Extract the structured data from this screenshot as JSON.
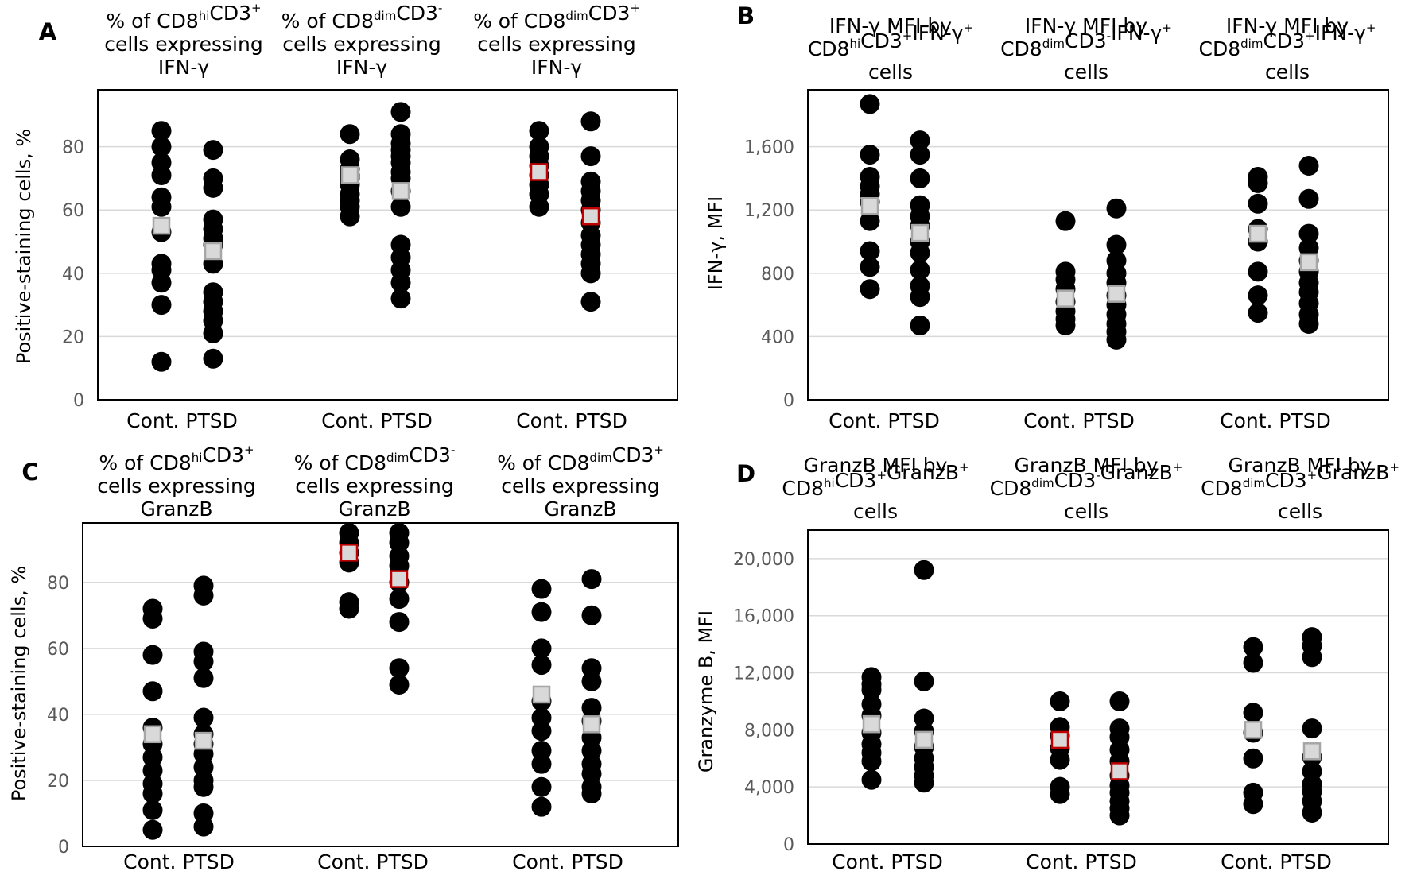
{
  "chart_data": [
    {
      "panel": "A",
      "type": "scatter",
      "ylabel": "Positive-staining cells, %",
      "ylim": [
        0,
        98
      ],
      "yticks": [
        0,
        20,
        40,
        60,
        80
      ],
      "ytick_labels": [
        "0",
        "20",
        "40",
        "60",
        "80"
      ],
      "groups": [
        {
          "title_lines": [
            [
              [
                "% of CD8",
                ""
              ],
              [
                "hi",
                "sup"
              ],
              [
                "CD3",
                ""
              ],
              [
                "+",
                "sup"
              ]
            ],
            [
              [
                "cells expressing",
                ""
              ]
            ],
            [
              [
                "IFN-γ",
                ""
              ]
            ]
          ],
          "pair_label": "Cont. PTSD",
          "cont": [
            85,
            80,
            75,
            71,
            64,
            61,
            53,
            43,
            41,
            37,
            30,
            12
          ],
          "ptsd": [
            79,
            70,
            67,
            57,
            54,
            51,
            49,
            43,
            34,
            31,
            28,
            25,
            21,
            13
          ],
          "cont_mean": 55,
          "ptsd_mean": 47,
          "cont_sig": false,
          "ptsd_sig": false
        },
        {
          "title_lines": [
            [
              [
                "% of CD8",
                ""
              ],
              [
                "dim",
                "sup"
              ],
              [
                "CD3",
                ""
              ],
              [
                "-",
                "sup"
              ]
            ],
            [
              [
                "cells expressing",
                ""
              ]
            ],
            [
              [
                "IFN-γ",
                ""
              ]
            ]
          ],
          "pair_label": "Cont. PTSD",
          "cont": [
            84,
            76,
            73,
            71,
            70,
            68,
            65,
            63,
            61,
            58
          ],
          "ptsd": [
            91,
            84,
            81,
            79,
            77,
            75,
            72,
            70,
            66,
            61,
            49,
            45,
            41,
            37,
            32
          ],
          "cont_mean": 71,
          "ptsd_mean": 66,
          "cont_sig": false,
          "ptsd_sig": false
        },
        {
          "title_lines": [
            [
              [
                "% of CD8",
                ""
              ],
              [
                "dim",
                "sup"
              ],
              [
                "CD3",
                ""
              ],
              [
                "+",
                "sup"
              ]
            ],
            [
              [
                "cells expressing",
                ""
              ]
            ],
            [
              [
                "IFN-γ",
                ""
              ]
            ]
          ],
          "pair_label": "Cont. PTSD",
          "cont": [
            85,
            80,
            77,
            74,
            71,
            68,
            65,
            61
          ],
          "ptsd": [
            88,
            77,
            69,
            66,
            63,
            60,
            56,
            52,
            49,
            46,
            43,
            40,
            31
          ],
          "cont_mean": 72,
          "ptsd_mean": 58,
          "cont_sig": true,
          "ptsd_sig": true
        }
      ]
    },
    {
      "panel": "B",
      "type": "scatter",
      "ylabel": "IFN-γ, MFI",
      "ylim": [
        0,
        1960
      ],
      "yticks": [
        0,
        400,
        800,
        1200,
        1600
      ],
      "ytick_labels": [
        "0",
        "400",
        "800",
        "1,200",
        "1,600"
      ],
      "groups": [
        {
          "title_lines": [
            [
              [
                "IFN-γ MFI by",
                ""
              ]
            ],
            [
              [
                "CD8",
                ""
              ],
              [
                "hi",
                "sup"
              ],
              [
                "CD3",
                ""
              ],
              [
                "+",
                "sup"
              ],
              [
                "IFN-γ",
                ""
              ],
              [
                "+",
                "sup"
              ]
            ],
            [
              [
                "cells",
                ""
              ]
            ]
          ],
          "pair_label": "Cont. PTSD",
          "cont": [
            1870,
            1550,
            1410,
            1350,
            1300,
            1250,
            1130,
            940,
            840,
            700
          ],
          "ptsd": [
            1640,
            1550,
            1400,
            1230,
            1160,
            1100,
            1000,
            930,
            820,
            720,
            650,
            470
          ],
          "cont_mean": 1225,
          "ptsd_mean": 1055,
          "cont_sig": false,
          "ptsd_sig": false
        },
        {
          "title_lines": [
            [
              [
                "IFN-γ MFI by",
                ""
              ]
            ],
            [
              [
                "CD8",
                ""
              ],
              [
                "dim",
                "sup"
              ],
              [
                "CD3",
                ""
              ],
              [
                "-",
                "sup"
              ],
              [
                "IFN-γ",
                ""
              ],
              [
                "+",
                "sup"
              ]
            ],
            [
              [
                "cells",
                ""
              ]
            ]
          ],
          "pair_label": "Cont. PTSD",
          "cont": [
            1130,
            810,
            760,
            700,
            620,
            560,
            510,
            470
          ],
          "ptsd": [
            1210,
            980,
            880,
            800,
            740,
            660,
            600,
            540,
            480,
            430,
            380
          ],
          "cont_mean": 640,
          "ptsd_mean": 670,
          "cont_sig": false,
          "ptsd_sig": false
        },
        {
          "title_lines": [
            [
              [
                "IFN-γ MFI by",
                ""
              ]
            ],
            [
              [
                "CD8",
                ""
              ],
              [
                "dim",
                "sup"
              ],
              [
                "CD3",
                ""
              ],
              [
                "+",
                "sup"
              ],
              [
                "IFN-γ",
                ""
              ],
              [
                "+",
                "sup"
              ]
            ],
            [
              [
                "cells",
                ""
              ]
            ]
          ],
          "pair_label": "Cont. PTSD",
          "cont": [
            1410,
            1370,
            1240,
            1080,
            1000,
            810,
            660,
            550
          ],
          "ptsd": [
            1480,
            1270,
            1050,
            960,
            880,
            810,
            740,
            680,
            610,
            540,
            480
          ],
          "cont_mean": 1050,
          "ptsd_mean": 870,
          "cont_sig": false,
          "ptsd_sig": false
        }
      ]
    },
    {
      "panel": "C",
      "type": "scatter",
      "ylabel": "Positive-staining cells, %",
      "ylim": [
        0,
        98
      ],
      "yticks": [
        0,
        20,
        40,
        60,
        80
      ],
      "ytick_labels": [
        "0",
        "20",
        "40",
        "60",
        "80"
      ],
      "groups": [
        {
          "title_lines": [
            [
              [
                "% of CD8",
                ""
              ],
              [
                "hi",
                "sup"
              ],
              [
                "CD3",
                ""
              ],
              [
                "+",
                "sup"
              ]
            ],
            [
              [
                "cells expressing",
                ""
              ]
            ],
            [
              [
                "GranzB",
                ""
              ]
            ]
          ],
          "pair_label": "Cont. PTSD",
          "cont": [
            72,
            69,
            58,
            47,
            36,
            31,
            27,
            23,
            19,
            16,
            11,
            5
          ],
          "ptsd": [
            79,
            76,
            59,
            56,
            51,
            39,
            34,
            31,
            28,
            24,
            20,
            18,
            10,
            6
          ],
          "cont_mean": 34,
          "ptsd_mean": 32,
          "cont_sig": false,
          "ptsd_sig": false
        },
        {
          "title_lines": [
            [
              [
                "% of CD8",
                ""
              ],
              [
                "dim",
                "sup"
              ],
              [
                "CD3",
                ""
              ],
              [
                "-",
                "sup"
              ]
            ],
            [
              [
                "cells expressing",
                ""
              ]
            ],
            [
              [
                "GranzB",
                ""
              ]
            ]
          ],
          "pair_label": "Cont. PTSD",
          "cont": [
            95,
            92,
            89,
            86,
            74,
            72
          ],
          "ptsd": [
            95,
            92,
            88,
            85,
            80,
            75,
            68,
            54,
            49
          ],
          "cont_mean": 89,
          "ptsd_mean": 81,
          "cont_sig": true,
          "ptsd_sig": true
        },
        {
          "title_lines": [
            [
              [
                "% of CD8",
                ""
              ],
              [
                "dim",
                "sup"
              ],
              [
                "CD3",
                ""
              ],
              [
                "+",
                "sup"
              ]
            ],
            [
              [
                "cells expressing",
                ""
              ]
            ],
            [
              [
                "GranzB",
                ""
              ]
            ]
          ],
          "pair_label": "Cont. PTSD",
          "cont": [
            78,
            71,
            60,
            55,
            44,
            39,
            35,
            29,
            25,
            18,
            12
          ],
          "ptsd": [
            81,
            70,
            54,
            50,
            42,
            38,
            33,
            29,
            25,
            22,
            18,
            16
          ],
          "cont_mean": 46,
          "ptsd_mean": 37,
          "cont_sig": false,
          "ptsd_sig": false
        }
      ]
    },
    {
      "panel": "D",
      "type": "scatter",
      "ylabel": "Granzyme B, MFI",
      "ylim": [
        0,
        22000
      ],
      "yticks": [
        0,
        4000,
        8000,
        12000,
        16000,
        20000
      ],
      "ytick_labels": [
        "0",
        "4,000",
        "8,000",
        "12,000",
        "16,000",
        "20,000"
      ],
      "groups": [
        {
          "title_lines": [
            [
              [
                "GranzB MFI by",
                ""
              ]
            ],
            [
              [
                "CD8",
                ""
              ],
              [
                "hi",
                "sup"
              ],
              [
                "CD3",
                ""
              ],
              [
                "+",
                "sup"
              ],
              [
                "GranzB",
                ""
              ],
              [
                "+",
                "sup"
              ]
            ],
            [
              [
                "cells",
                ""
              ]
            ]
          ],
          "pair_label": "Cont. PTSD",
          "cont": [
            11700,
            11200,
            10800,
            9800,
            9000,
            7800,
            7000,
            6400,
            5800,
            4500
          ],
          "ptsd": [
            19200,
            11400,
            8800,
            7900,
            6800,
            6000,
            5400,
            4800,
            4300
          ],
          "cont_mean": 8400,
          "ptsd_mean": 7300,
          "cont_sig": false,
          "ptsd_sig": false
        },
        {
          "title_lines": [
            [
              [
                "GranzB MFI by",
                ""
              ]
            ],
            [
              [
                "CD8",
                ""
              ],
              [
                "dim",
                "sup"
              ],
              [
                "CD3",
                ""
              ],
              [
                "-",
                "sup"
              ],
              [
                "GranzB",
                ""
              ],
              [
                "+",
                "sup"
              ]
            ],
            [
              [
                "cells",
                ""
              ]
            ]
          ],
          "pair_label": "Cont. PTSD",
          "cont": [
            10000,
            8200,
            7600,
            6700,
            5900,
            4000,
            3500
          ],
          "ptsd": [
            10000,
            8100,
            7500,
            6600,
            5800,
            4800,
            4100,
            3600,
            3000,
            2500,
            2000
          ],
          "cont_mean": 7300,
          "ptsd_mean": 5100,
          "cont_sig": true,
          "ptsd_sig": true
        },
        {
          "title_lines": [
            [
              [
                "GranzB MFI by",
                ""
              ]
            ],
            [
              [
                "CD8",
                ""
              ],
              [
                "dim",
                "sup"
              ],
              [
                "CD3",
                ""
              ],
              [
                "+",
                "sup"
              ],
              [
                "GranzB",
                ""
              ],
              [
                "+",
                "sup"
              ]
            ],
            [
              [
                "cells",
                ""
              ]
            ]
          ],
          "pair_label": "Cont. PTSD",
          "cont": [
            13800,
            12700,
            9200,
            7800,
            6000,
            3600,
            2800
          ],
          "ptsd": [
            14500,
            13900,
            13100,
            8100,
            6100,
            5100,
            4200,
            3700,
            3000,
            2200
          ],
          "cont_mean": 8000,
          "ptsd_mean": 6500,
          "cont_sig": false,
          "ptsd_sig": false
        }
      ]
    }
  ]
}
